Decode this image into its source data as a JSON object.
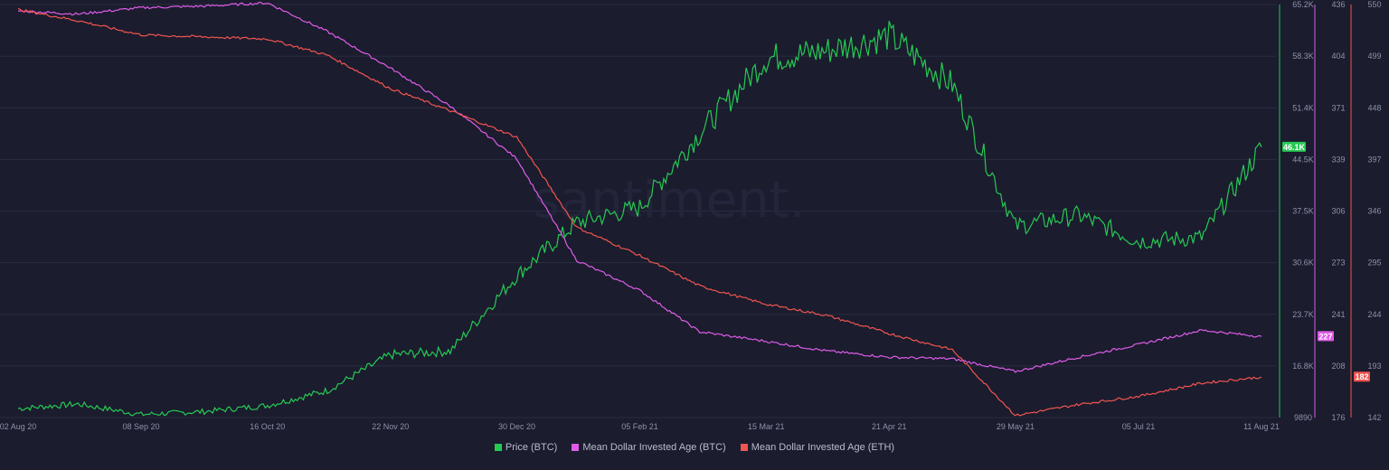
{
  "watermark": "santiment.",
  "colors": {
    "background": "#1b1c2e",
    "grid": "#2a2c40",
    "price_btc": "#26c953",
    "mdia_btc": "#de5ce8",
    "mdia_eth": "#f0554f"
  },
  "chart_data": {
    "type": "line",
    "x_tick_labels": [
      "02 Aug 20",
      "08 Sep 20",
      "16 Oct 20",
      "22 Nov 20",
      "30 Dec 20",
      "05 Feb 21",
      "15 Mar 21",
      "21 Apr 21",
      "29 May 21",
      "05 Jul 21",
      "11 Aug 21"
    ],
    "x": [
      "2020-08-02",
      "2020-08-20",
      "2020-09-08",
      "2020-09-27",
      "2020-10-16",
      "2020-11-03",
      "2020-11-22",
      "2020-12-10",
      "2020-12-30",
      "2021-01-17",
      "2021-02-05",
      "2021-02-23",
      "2021-03-15",
      "2021-04-02",
      "2021-04-21",
      "2021-05-10",
      "2021-05-29",
      "2021-06-17",
      "2021-07-05",
      "2021-07-24",
      "2021-08-11"
    ],
    "axes": {
      "price_btc": {
        "ticks": [
          "65.2K",
          "58.3K",
          "51.4K",
          "44.5K",
          "37.5K",
          "30.6K",
          "23.7K",
          "16.8K",
          "9890"
        ],
        "min": 9890,
        "max": 65200,
        "current_label": "46.1K"
      },
      "mdia_btc": {
        "ticks": [
          "436",
          "404",
          "371",
          "339",
          "306",
          "273",
          "241",
          "208",
          "176"
        ],
        "min": 176,
        "max": 436,
        "current_label": "227"
      },
      "mdia_eth": {
        "ticks": [
          "550",
          "499",
          "448",
          "397",
          "346",
          "295",
          "244",
          "193",
          "142"
        ],
        "min": 142,
        "max": 550,
        "current_label": "182"
      }
    },
    "series": [
      {
        "name": "Price (BTC)",
        "axis": "price_btc",
        "color": "#26c953",
        "values": [
          11100,
          11700,
          10300,
          10700,
          11500,
          13500,
          18300,
          18800,
          28900,
          36000,
          38000,
          48000,
          58000,
          59000,
          61000,
          54500,
          35500,
          37000,
          33500,
          34000,
          46100
        ]
      },
      {
        "name": "Mean Dollar Invested Age (BTC)",
        "axis": "mdia_btc",
        "color": "#de5ce8",
        "values": [
          432,
          430,
          434,
          435,
          437,
          419,
          396,
          372,
          339,
          275,
          256,
          230,
          224,
          218,
          214,
          213,
          205,
          214,
          222,
          231,
          227
        ]
      },
      {
        "name": "Mean Dollar Invested Age (ETH)",
        "axis": "mdia_eth",
        "color": "#f0554f",
        "values": [
          545,
          534,
          520,
          518,
          516,
          500,
          467,
          445,
          419,
          330,
          302,
          272,
          254,
          243,
          225,
          209,
          144,
          155,
          163,
          176,
          182
        ]
      }
    ],
    "grid": true,
    "legend_position": "bottom-center"
  }
}
